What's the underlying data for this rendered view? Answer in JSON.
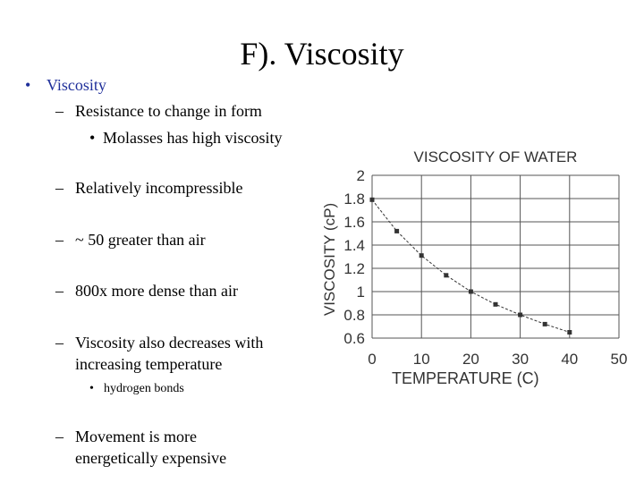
{
  "slide": {
    "title": "F). Viscosity",
    "bullets": [
      {
        "marker": "•",
        "text": "Viscosity"
      },
      {
        "marker": "–",
        "text": "Resistance to change in form"
      },
      {
        "marker": "•",
        "text": "Molasses has high viscosity"
      },
      {
        "marker": "–",
        "text": "Relatively incompressible"
      },
      {
        "marker": "–",
        "text": "~ 50 greater than air"
      },
      {
        "marker": "–",
        "text": "800x more dense than air"
      },
      {
        "marker": "–",
        "text": "Viscosity also decreases with"
      },
      {
        "text": "increasing temperature"
      },
      {
        "marker": "•",
        "text": "hydrogen bonds"
      },
      {
        "marker": "–",
        "text": "Movement is more"
      },
      {
        "text": "energetically expensive"
      }
    ]
  },
  "chart_data": {
    "type": "line",
    "title": "VISCOSITY OF WATER",
    "xlabel": "TEMPERATURE (C)",
    "ylabel": "VISCOSITY (cP)",
    "xlim": [
      0,
      50
    ],
    "ylim": [
      0.6,
      2
    ],
    "xticks": [
      "0",
      "10",
      "20",
      "30",
      "40",
      "50"
    ],
    "yticks": [
      "0.6",
      "0.8",
      "1",
      "1.2",
      "1.4",
      "1.6",
      "1.8",
      "2"
    ],
    "grid": true,
    "x": [
      0,
      5,
      10,
      15,
      20,
      25,
      30,
      35,
      40
    ],
    "y": [
      1.79,
      1.52,
      1.31,
      1.14,
      1.0,
      0.89,
      0.8,
      0.72,
      0.65
    ]
  }
}
